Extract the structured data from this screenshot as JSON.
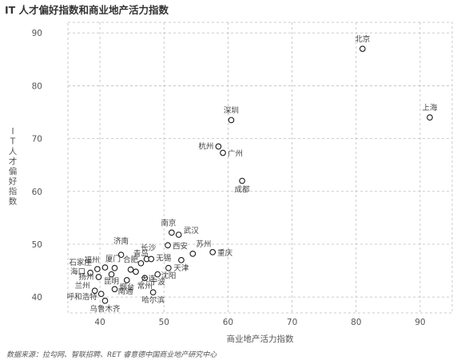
{
  "title": "IT 人才偏好指数和商业地产活力指数",
  "source": "数据来源：拉勾网、智联招聘、RET 睿意德中国商业地产研究中心",
  "chart_data": {
    "type": "scatter",
    "title": "IT 人才偏好指数和商业地产活力指数",
    "xlabel": "商业地产活力指数",
    "ylabel": "IT人才偏好指数",
    "xlim": [
      35,
      95
    ],
    "ylim": [
      37,
      92
    ],
    "xticks": [
      40,
      50,
      60,
      70,
      80,
      90
    ],
    "yticks": [
      40,
      50,
      60,
      70,
      80,
      90
    ],
    "grid": true,
    "marker_color": "#1a1a1a",
    "points": [
      {
        "label": "北京",
        "x": 81.0,
        "y": 87.0
      },
      {
        "label": "上海",
        "x": 91.5,
        "y": 74.0
      },
      {
        "label": "深圳",
        "x": 60.5,
        "y": 73.5
      },
      {
        "label": "杭州",
        "x": 58.5,
        "y": 68.5
      },
      {
        "label": "广州",
        "x": 59.2,
        "y": 67.3
      },
      {
        "label": "成都",
        "x": 62.2,
        "y": 62.0
      },
      {
        "label": "南京",
        "x": 51.2,
        "y": 52.2
      },
      {
        "label": "武汉",
        "x": 52.3,
        "y": 51.8
      },
      {
        "label": "重庆",
        "x": 57.6,
        "y": 48.5
      },
      {
        "label": "西安",
        "x": 50.6,
        "y": 49.8
      },
      {
        "label": "苏州",
        "x": 54.5,
        "y": 48.2
      },
      {
        "label": "长沙",
        "x": 47.3,
        "y": 47.2
      },
      {
        "label": "济南",
        "x": 43.3,
        "y": 48.0
      },
      {
        "label": "天津",
        "x": 52.7,
        "y": 47.0
      },
      {
        "label": "青岛",
        "x": 46.4,
        "y": 46.4
      },
      {
        "label": "无锡",
        "x": 48.0,
        "y": 47.2
      },
      {
        "label": "厦门",
        "x": 42.3,
        "y": 45.5
      },
      {
        "label": "合肥",
        "x": 44.8,
        "y": 45.2
      },
      {
        "label": "福州",
        "x": 40.8,
        "y": 45.6
      },
      {
        "label": "沈阳",
        "x": 50.7,
        "y": 45.5
      },
      {
        "label": "石家庄",
        "x": 39.6,
        "y": 45.3
      },
      {
        "label": "宁波",
        "x": 49.0,
        "y": 44.3
      },
      {
        "label": "大连",
        "x": 45.6,
        "y": 44.8
      },
      {
        "label": "海口",
        "x": 38.5,
        "y": 44.6
      },
      {
        "label": "扬州",
        "x": 39.8,
        "y": 43.8
      },
      {
        "label": "昆明",
        "x": 41.8,
        "y": 44.3
      },
      {
        "label": "常州",
        "x": 47.0,
        "y": 43.6
      },
      {
        "label": "烟台",
        "x": 44.2,
        "y": 43.2
      },
      {
        "label": "兰州",
        "x": 39.2,
        "y": 41.2
      },
      {
        "label": "南通",
        "x": 42.3,
        "y": 41.5
      },
      {
        "label": "哈尔滨",
        "x": 48.3,
        "y": 40.9
      },
      {
        "label": "呼和浩特",
        "x": 40.2,
        "y": 40.6
      },
      {
        "label": "乌鲁木齐",
        "x": 40.8,
        "y": 39.3
      }
    ]
  }
}
